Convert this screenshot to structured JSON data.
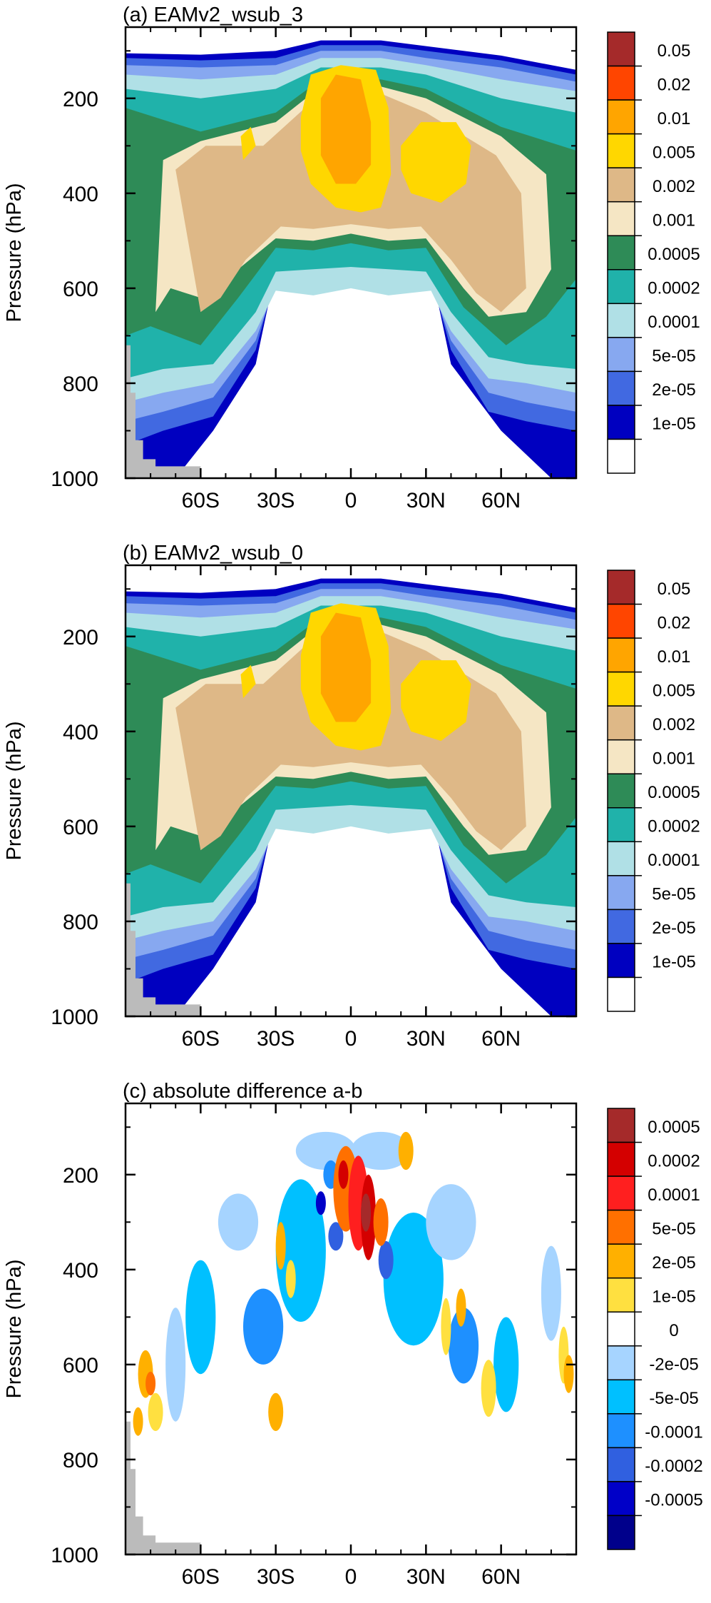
{
  "figure": {
    "ylabel": "Pressure (hPa)",
    "y_ticks": [
      "200",
      "400",
      "600",
      "800",
      "1000"
    ],
    "x_ticks": [
      "60S",
      "30S",
      "0",
      "30N",
      "60N"
    ]
  },
  "panels": [
    {
      "title": "(a) EAMv2_wsub_3",
      "colorbar_labels": [
        "0.05",
        "0.02",
        "0.01",
        "0.005",
        "0.002",
        "0.001",
        "0.0005",
        "0.0002",
        "0.0001",
        "5e-05",
        "2e-05",
        "1e-05"
      ],
      "colors": [
        "#a52a2a",
        "#ff4500",
        "#ffa500",
        "#ffd700",
        "#deb887",
        "#f5e6c4",
        "#2e8b57",
        "#20b2aa",
        "#b0e0e6",
        "#87a8f0",
        "#4169e1",
        "#0000c0",
        "#ffffff"
      ]
    },
    {
      "title": "(b) EAMv2_wsub_0",
      "colorbar_labels": [
        "0.05",
        "0.02",
        "0.01",
        "0.005",
        "0.002",
        "0.001",
        "0.0005",
        "0.0002",
        "0.0001",
        "5e-05",
        "2e-05",
        "1e-05"
      ],
      "colors": [
        "#a52a2a",
        "#ff4500",
        "#ffa500",
        "#ffd700",
        "#deb887",
        "#f5e6c4",
        "#2e8b57",
        "#20b2aa",
        "#b0e0e6",
        "#87a8f0",
        "#4169e1",
        "#0000c0",
        "#ffffff"
      ]
    },
    {
      "title": "(c) absolute difference a-b",
      "colorbar_labels": [
        "0.0005",
        "0.0002",
        "0.0001",
        "5e-05",
        "2e-05",
        "1e-05",
        "0",
        "-2e-05",
        "-5e-05",
        "-0.0001",
        "-0.0002",
        "-0.0005"
      ],
      "colors": [
        "#a52a2a",
        "#d40000",
        "#ff1f1f",
        "#ff7000",
        "#ffb000",
        "#ffe040",
        "#ffffff",
        "#a6d4ff",
        "#00c0ff",
        "#1e90ff",
        "#3060e0",
        "#0000c8",
        "#00008b"
      ]
    }
  ],
  "chart_data": [
    {
      "type": "contour",
      "title": "(a) EAMv2_wsub_3",
      "xlabel": "",
      "ylabel": "Pressure (hPa)",
      "x_ticks": [
        "60S",
        "30S",
        "0",
        "30N",
        "60N"
      ],
      "y_ticks": [
        200,
        400,
        600,
        800,
        1000
      ],
      "xlim": [
        -90,
        90
      ],
      "ylim": [
        1000,
        50
      ],
      "levels": [
        1e-05,
        2e-05,
        5e-05,
        0.0001,
        0.0002,
        0.0005,
        0.001,
        0.002,
        0.005,
        0.01,
        0.02,
        0.05
      ]
    },
    {
      "type": "contour",
      "title": "(b) EAMv2_wsub_0",
      "xlabel": "",
      "ylabel": "Pressure (hPa)",
      "x_ticks": [
        "60S",
        "30S",
        "0",
        "30N",
        "60N"
      ],
      "y_ticks": [
        200,
        400,
        600,
        800,
        1000
      ],
      "xlim": [
        -90,
        90
      ],
      "ylim": [
        1000,
        50
      ],
      "levels": [
        1e-05,
        2e-05,
        5e-05,
        0.0001,
        0.0002,
        0.0005,
        0.001,
        0.002,
        0.005,
        0.01,
        0.02,
        0.05
      ]
    },
    {
      "type": "contour",
      "title": "(c) absolute difference a-b",
      "xlabel": "",
      "ylabel": "Pressure (hPa)",
      "x_ticks": [
        "60S",
        "30S",
        "0",
        "30N",
        "60N"
      ],
      "y_ticks": [
        200,
        400,
        600,
        800,
        1000
      ],
      "xlim": [
        -90,
        90
      ],
      "ylim": [
        1000,
        50
      ],
      "levels": [
        -0.0005,
        -0.0002,
        -0.0001,
        -5e-05,
        -2e-05,
        0,
        1e-05,
        2e-05,
        5e-05,
        0.0001,
        0.0002,
        0.0005
      ]
    }
  ]
}
